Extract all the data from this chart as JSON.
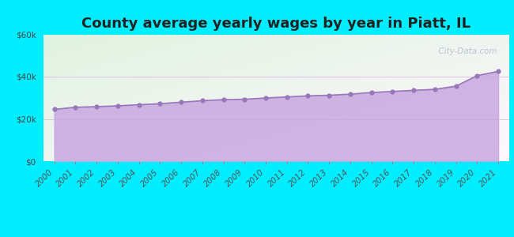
{
  "title": "County average yearly wages by year in Piatt, IL",
  "years": [
    2000,
    2001,
    2002,
    2003,
    2004,
    2005,
    2006,
    2007,
    2008,
    2009,
    2010,
    2011,
    2012,
    2013,
    2014,
    2015,
    2016,
    2017,
    2018,
    2019,
    2020,
    2021
  ],
  "wages": [
    24500,
    25500,
    25800,
    26200,
    26700,
    27200,
    27900,
    28600,
    29100,
    29300,
    29900,
    30400,
    30900,
    31200,
    31700,
    32500,
    33000,
    33500,
    34000,
    35500,
    40500,
    42500
  ],
  "ylim": [
    0,
    60000
  ],
  "yticks": [
    0,
    20000,
    40000,
    60000
  ],
  "ytick_labels": [
    "$0",
    "$20k",
    "$40k",
    "$60k"
  ],
  "fill_color": "#c8a8e0",
  "fill_alpha": 0.85,
  "line_color": "#9977bb",
  "line_width": 1.2,
  "marker_color": "#9977bb",
  "marker_size": 3.5,
  "bg_outer": "#00eeff",
  "watermark": "  City-Data.com",
  "title_fontsize": 13,
  "tick_fontsize": 7.5,
  "grid_color": "#ddbbdd",
  "grid_linewidth": 0.6
}
